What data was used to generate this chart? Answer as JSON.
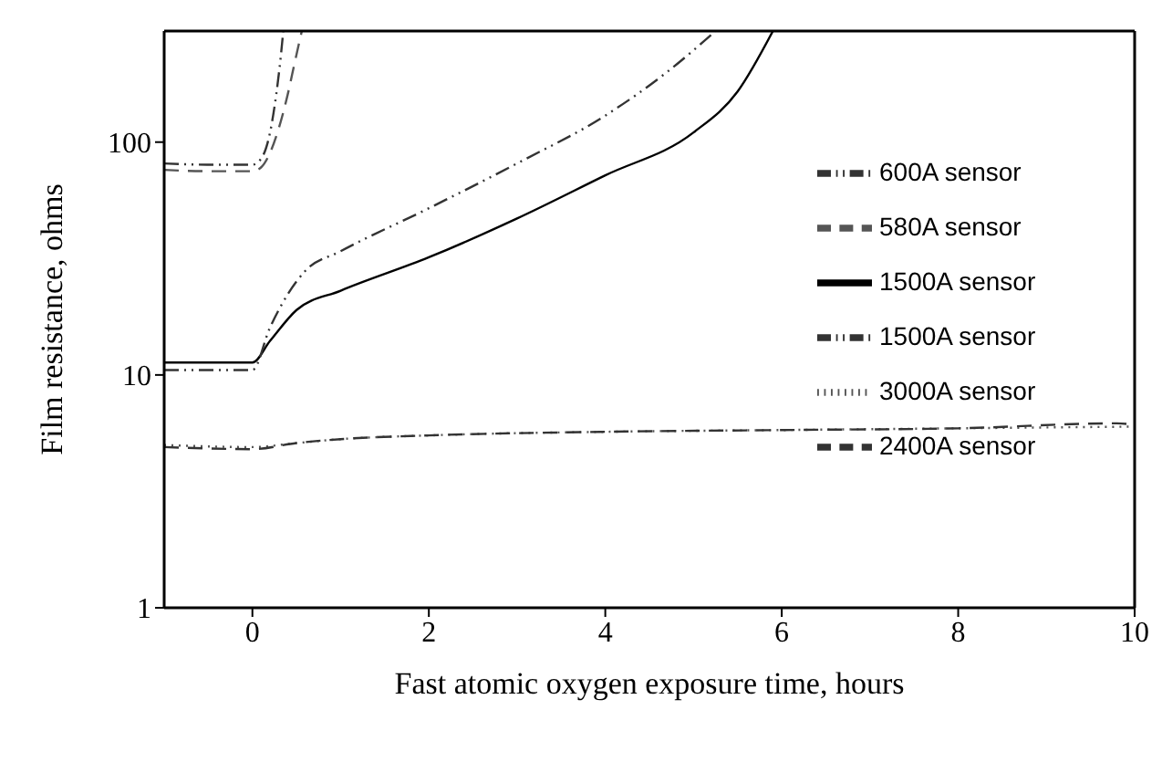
{
  "chart_data": {
    "type": "line",
    "xlabel": "Fast atomic oxygen exposure time, hours",
    "ylabel": "Film resistance, ohms",
    "xlim": [
      -1,
      10
    ],
    "xticks": [
      0,
      2,
      4,
      6,
      8,
      10
    ],
    "ylim": [
      1,
      300
    ],
    "yticks": [
      1,
      10,
      100
    ],
    "log": "y",
    "grid": false,
    "legend": "right",
    "marker": "none",
    "series": [
      {
        "name": "600A sensor",
        "color": "#333333",
        "line_style": "dashdot",
        "x": [
          -1,
          -0.5,
          0,
          0.1,
          0.2,
          0.27,
          0.32,
          0.35
        ],
        "values": [
          81,
          80,
          80,
          85,
          110,
          160,
          230,
          300
        ]
      },
      {
        "name": "580A sensor",
        "color": "#555555",
        "line_style": "dashed",
        "x": [
          -1,
          -0.5,
          0,
          0.1,
          0.2,
          0.3,
          0.4,
          0.48,
          0.56
        ],
        "values": [
          76,
          75,
          75,
          78,
          90,
          115,
          160,
          220,
          300
        ]
      },
      {
        "name": "1500A sensor",
        "color": "#000000",
        "line_style": "solid",
        "x": [
          -1,
          0,
          0.2,
          0.5,
          1,
          2,
          3,
          4,
          5,
          5.5,
          5.9
        ],
        "values": [
          11.3,
          11.3,
          14,
          19,
          23,
          32,
          47,
          72,
          110,
          165,
          300
        ]
      },
      {
        "name": "1500A sensor",
        "color": "#333333",
        "line_style": "dashdot",
        "x": [
          -1,
          -0.6,
          0,
          0.2,
          0.6,
          1,
          2,
          3,
          4,
          4.7,
          5.25
        ],
        "values": [
          10.5,
          10.5,
          10.5,
          16,
          28,
          34,
          52,
          81,
          130,
          200,
          300
        ]
      },
      {
        "name": "3000A sensor",
        "color": "#555555",
        "line_style": "dotted",
        "x": [
          -1,
          0,
          0.5,
          1,
          2,
          4,
          6,
          8,
          10
        ],
        "values": [
          5,
          4.9,
          5.1,
          5.3,
          5.5,
          5.7,
          5.8,
          5.9,
          6
        ]
      },
      {
        "name": "2400A sensor",
        "color": "#333333",
        "line_style": "dashed",
        "x": [
          -1,
          0,
          0.5,
          1,
          2,
          4,
          6,
          8,
          9.8,
          10
        ],
        "values": [
          4.9,
          4.8,
          5.1,
          5.3,
          5.5,
          5.7,
          5.8,
          5.9,
          6.2,
          6.1
        ]
      }
    ]
  }
}
